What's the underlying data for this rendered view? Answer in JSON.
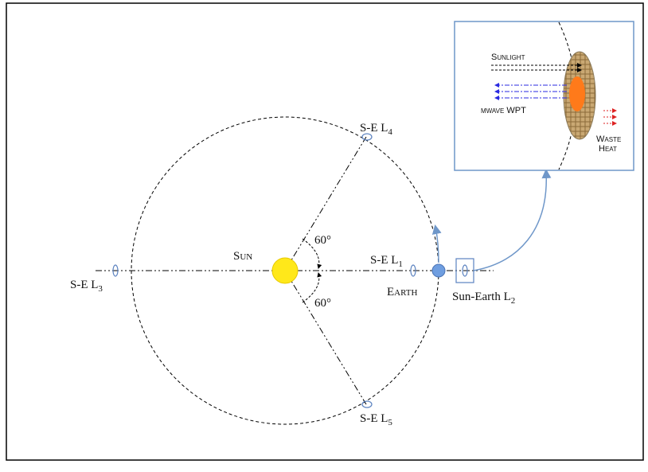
{
  "diagram": {
    "labels": {
      "l4": {
        "text": "S-E L",
        "sub": "4"
      },
      "l5": {
        "text": "S-E L",
        "sub": "5"
      },
      "l3": {
        "text": "S-E L",
        "sub": "3"
      },
      "l1": {
        "text": "S-E L",
        "sub": "1"
      },
      "l2": {
        "text": "Sun-Earth L",
        "sub": "2"
      },
      "sun": "Sun",
      "earth": "Earth",
      "angle_top": "60°",
      "angle_bottom": "60°"
    },
    "inset": {
      "sunlight": "Sunlight",
      "microwave": "µwave WPT",
      "waste_heat": [
        "Waste",
        "Heat"
      ]
    }
  }
}
